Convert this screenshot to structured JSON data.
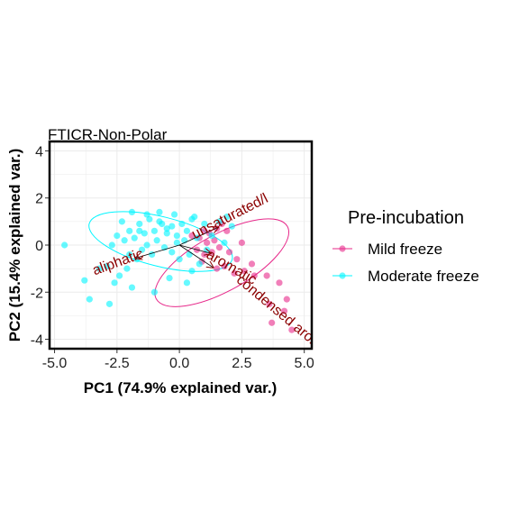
{
  "chart_data": {
    "type": "scatter",
    "title": "FTICR-Non-Polar",
    "xlabel": "PC1 (74.9% explained var.)",
    "ylabel": "PC2 (15.4% explained var.)",
    "xlim": [
      -5.2,
      5.3
    ],
    "ylim": [
      -4.4,
      4.4
    ],
    "xticks": [
      "-5.0",
      "-2.5",
      "0.0",
      "2.5",
      "5.0"
    ],
    "xtick_values": [
      -5.0,
      -2.5,
      0.0,
      2.5,
      5.0
    ],
    "yticks": [
      "4",
      "2",
      "0",
      "-2",
      "-4"
    ],
    "ytick_values": [
      4,
      2,
      0,
      -2,
      -4
    ],
    "grid": true,
    "legend": {
      "title": "Pre-incubation",
      "placement": "right"
    },
    "series": [
      {
        "name": "Mild freeze",
        "color": "#e7298a",
        "points": [
          [
            0.5,
            0.4
          ],
          [
            0.8,
            0.3
          ],
          [
            1.0,
            0.6
          ],
          [
            1.2,
            0.5
          ],
          [
            1.5,
            0.7
          ],
          [
            1.9,
            0.6
          ],
          [
            1.4,
            0.2
          ],
          [
            1.1,
            0.1
          ],
          [
            0.7,
            -0.2
          ],
          [
            1.0,
            -0.4
          ],
          [
            1.3,
            -0.3
          ],
          [
            1.6,
            -0.1
          ],
          [
            2.0,
            -0.3
          ],
          [
            2.3,
            -0.6
          ],
          [
            1.8,
            -0.9
          ],
          [
            2.6,
            -1.1
          ],
          [
            3.0,
            -1.3
          ],
          [
            3.5,
            -1.3
          ],
          [
            2.9,
            -0.8
          ],
          [
            2.2,
            -1.2
          ],
          [
            4.0,
            -1.6
          ],
          [
            4.3,
            -2.3
          ],
          [
            3.6,
            -2.5
          ],
          [
            4.2,
            -2.8
          ],
          [
            3.7,
            -3.3
          ],
          [
            4.5,
            -3.6
          ],
          [
            1.5,
            -1.0
          ],
          [
            0.9,
            -0.7
          ],
          [
            2.5,
            0.1
          ],
          [
            1.7,
            0.9
          ]
        ],
        "ellipse": {
          "cx": 1.7,
          "cy": -0.75,
          "rx": 3.0,
          "ry": 1.2,
          "angle_deg": -29
        }
      },
      {
        "name": "Moderate freeze",
        "color": "#00f5ff",
        "points": [
          [
            -4.6,
            0.0
          ],
          [
            -3.8,
            -1.5
          ],
          [
            -3.6,
            -2.3
          ],
          [
            -2.8,
            -2.5
          ],
          [
            -2.9,
            -0.9
          ],
          [
            -2.4,
            -1.3
          ],
          [
            -2.1,
            -1.0
          ],
          [
            -1.9,
            -1.8
          ],
          [
            -2.7,
            0.0
          ],
          [
            -2.5,
            0.4
          ],
          [
            -2.2,
            0.2
          ],
          [
            -2.0,
            0.6
          ],
          [
            -1.8,
            0.3
          ],
          [
            -1.6,
            0.9
          ],
          [
            -1.4,
            0.5
          ],
          [
            -1.2,
            1.1
          ],
          [
            -1.0,
            0.6
          ],
          [
            -0.9,
            0.2
          ],
          [
            -0.7,
            0.9
          ],
          [
            -0.5,
            0.5
          ],
          [
            -0.3,
            0.8
          ],
          [
            -0.1,
            0.4
          ],
          [
            0.1,
            0.9
          ],
          [
            0.3,
            0.6
          ],
          [
            0.5,
            1.1
          ],
          [
            -0.8,
            1.4
          ],
          [
            -1.3,
            1.3
          ],
          [
            -1.9,
            1.4
          ],
          [
            -2.3,
            1.0
          ],
          [
            -0.2,
            1.3
          ],
          [
            0.6,
            1.2
          ],
          [
            1.0,
            0.9
          ],
          [
            1.6,
            1.0
          ],
          [
            1.9,
            1.2
          ],
          [
            2.1,
            0.8
          ],
          [
            -0.6,
            -0.1
          ],
          [
            -0.3,
            -0.3
          ],
          [
            0.0,
            -0.6
          ],
          [
            0.4,
            -0.4
          ],
          [
            0.8,
            -0.8
          ],
          [
            -1.1,
            -0.4
          ],
          [
            -1.5,
            -0.2
          ],
          [
            -0.4,
            -1.4
          ],
          [
            -1.0,
            -2.0
          ],
          [
            0.3,
            -1.6
          ],
          [
            -1.7,
            -0.6
          ],
          [
            -2.6,
            -1.6
          ],
          [
            -3.2,
            -1.0
          ],
          [
            -1.3,
            0.0
          ],
          [
            -0.1,
            0.1
          ],
          [
            0.2,
            0.2
          ],
          [
            0.7,
            0.3
          ],
          [
            1.3,
            0.4
          ],
          [
            -0.5,
            0.7
          ],
          [
            -1.6,
            0.6
          ],
          [
            1.1,
            -0.2
          ],
          [
            0.5,
            -1.1
          ],
          [
            -2.0,
            -0.4
          ],
          [
            -0.8,
            1.0
          ],
          [
            1.8,
            0.1
          ]
        ],
        "ellipse": {
          "cx": -0.75,
          "cy": 0.15,
          "rx": 2.95,
          "ry": 1.05,
          "angle_deg": 14
        }
      }
    ],
    "loadings": [
      {
        "label": "unsaturated/l",
        "x": 1.55,
        "y": 0.75,
        "label_x": 2.1,
        "label_y": 1.05,
        "label_angle": -27
      },
      {
        "label": "aliphatic",
        "x": -1.75,
        "y": -0.55,
        "label_x": -2.4,
        "label_y": -0.9,
        "label_angle": -20
      },
      {
        "label": "aromatic",
        "x": 1.25,
        "y": -0.35,
        "label_x": 2.0,
        "label_y": -1.1,
        "label_angle": 30
      },
      {
        "label": "condensed arom",
        "x": 1.35,
        "y": -0.95,
        "label_x": 3.9,
        "label_y": -3.0,
        "label_angle": 40
      }
    ]
  }
}
